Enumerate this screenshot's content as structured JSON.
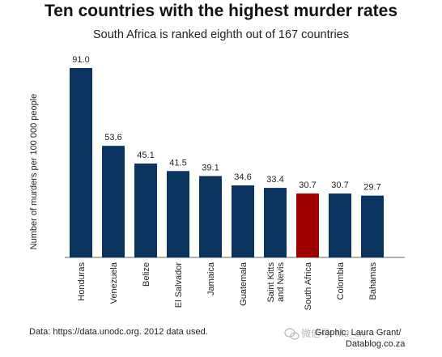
{
  "chart_data": {
    "type": "bar",
    "title": "Ten countries with the highest murder rates",
    "subtitle": "South Africa is ranked eighth out of 167 countries",
    "xlabel": "",
    "ylabel": "Number of murders per 100 000 people",
    "ylim": [
      0,
      91
    ],
    "grid": false,
    "categories": [
      [
        "Honduras"
      ],
      [
        "Venezuela"
      ],
      [
        "Belize"
      ],
      [
        "El Salvador"
      ],
      [
        "Jamaica"
      ],
      [
        "Guatemala"
      ],
      [
        "Saint Kitts",
        "and Nevis"
      ],
      [
        "South Africa"
      ],
      [
        "Colombia"
      ],
      [
        "Bahamas"
      ]
    ],
    "values": [
      91.0,
      53.6,
      45.1,
      41.5,
      39.1,
      34.6,
      33.4,
      30.7,
      30.7,
      29.7
    ],
    "value_labels": [
      "91.0",
      "53.6",
      "45.1",
      "41.5",
      "39.1",
      "34.6",
      "33.4",
      "30.7",
      "30.7",
      "29.7"
    ],
    "highlight_index": 7
  },
  "colors": {
    "bar": "#0b3460",
    "highlight": "#9e0000",
    "axis": "#666666"
  },
  "footer": {
    "source": "Data: https://data.unodc.org. 2012 data used.",
    "credit_line1": "Graphic: Laura Grant/",
    "credit_line2": "Datablog.co.za"
  },
  "watermark": {
    "icon": "wechat-icon",
    "text": "微信号: Mu_cn"
  }
}
